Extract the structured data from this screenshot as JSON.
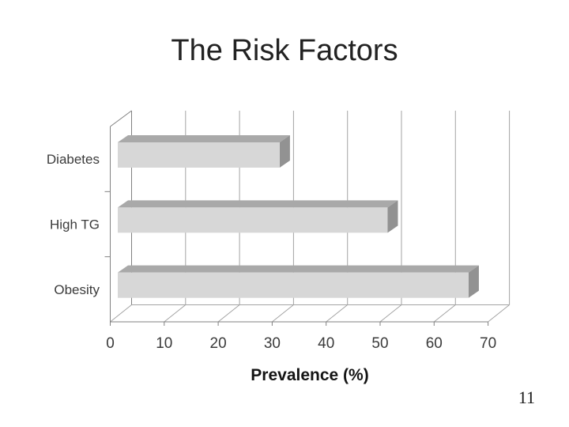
{
  "slide": {
    "title": "The Risk Factors",
    "page_number": "11"
  },
  "chart_data": {
    "type": "bar",
    "orientation": "horizontal",
    "style": "3d-cylinder-free 3d block bars, white background",
    "title": "",
    "categories": [
      "Diabetes",
      "High TG",
      "Obesity"
    ],
    "values": [
      30,
      50,
      65
    ],
    "xlabel": "Prevalence (%)",
    "ylabel": "",
    "xlim": [
      0,
      70
    ],
    "xticks": [
      0,
      10,
      20,
      30,
      40,
      50,
      60,
      70
    ],
    "grid": true,
    "legend": false,
    "colors": {
      "bar_front": "#d7d7d7",
      "bar_top": "#a9a9a9",
      "bar_side": "#929292",
      "axis": "#808080",
      "gridline": "#a3a3a3",
      "label": "#3b3b3b"
    }
  }
}
